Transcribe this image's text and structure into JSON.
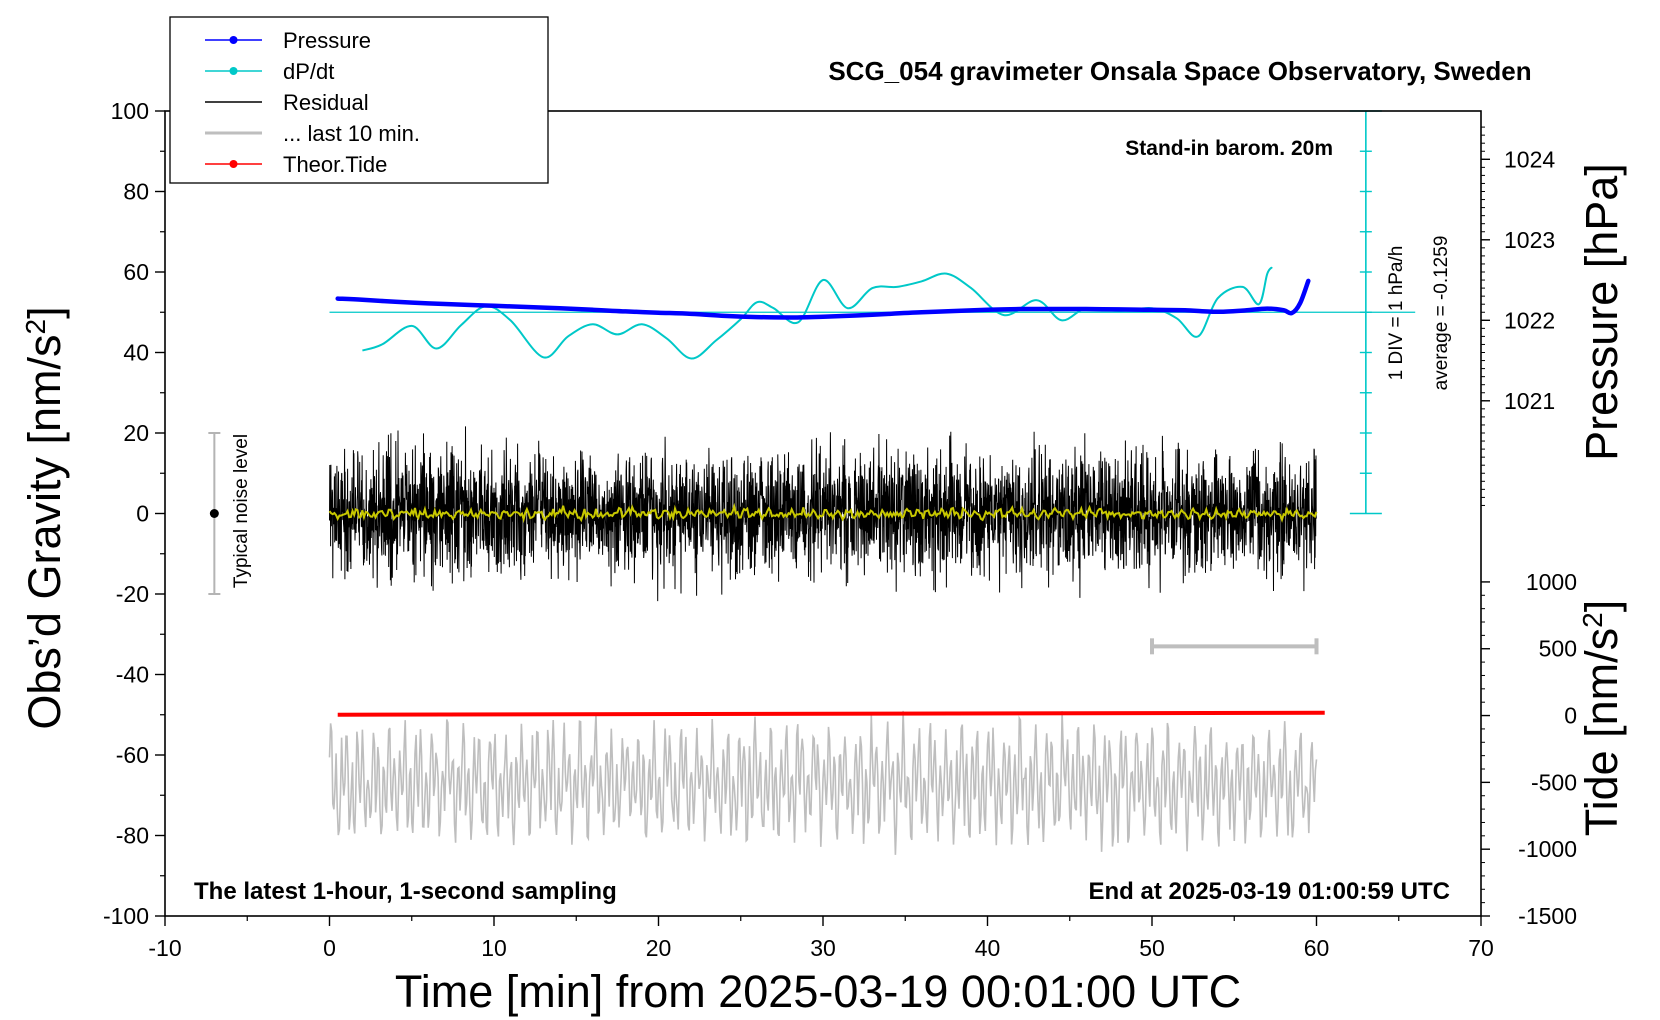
{
  "chart_data": {
    "type": "line",
    "title": "SCG_054 gravimeter Onsala Space Observatory, Sweden",
    "xlabel": "Time [min] from 2025-03-19 00:01:00 UTC",
    "ylabel_left": "Obs’d Gravity [nm/s",
    "ylabel_left_sup": "2",
    "ylabel_left_close": "]",
    "ylabel_right_top": "Pressure [hPa]",
    "ylabel_right_bottom": "Tide [nm/s",
    "ylabel_right_bottom_sup": "2",
    "ylabel_right_bottom_close": "]",
    "xlim": [
      -10,
      70
    ],
    "ylim_left": [
      -100,
      100
    ],
    "xticks": [
      "-10",
      "0",
      "10",
      "20",
      "30",
      "40",
      "50",
      "60",
      "70"
    ],
    "xtick_values": [
      -10,
      0,
      10,
      20,
      30,
      40,
      50,
      60,
      70
    ],
    "yticks_left": [
      "100",
      "80",
      "60",
      "40",
      "20",
      "0",
      "-20",
      "-40",
      "-60",
      "-80",
      "-100"
    ],
    "ytick_values_left": [
      100,
      80,
      60,
      40,
      20,
      0,
      -20,
      -40,
      -60,
      -80,
      -100
    ],
    "pressure_axis": {
      "ticks": [
        "1024",
        "1023",
        "1022",
        "1021"
      ],
      "values": [
        1024,
        1023,
        1022,
        1021
      ],
      "hpa_at_gravity_0": 1019.6,
      "gravity_per_hpa": 20
    },
    "tide_axis": {
      "ticks": [
        "1000",
        "500",
        "0",
        "-500",
        "-1000",
        "-1500"
      ],
      "values": [
        1000,
        500,
        0,
        -500,
        -1000,
        -1500
      ],
      "range": [
        -1500,
        1000
      ],
      "gravity_at_tide_0": -50
    },
    "legend": {
      "location": "top-left",
      "items": [
        {
          "label": "Pressure",
          "color": "#0000ff",
          "marker": true
        },
        {
          "label": "dP/dt",
          "color": "#00c8c8",
          "marker": true
        },
        {
          "label": "Residual",
          "color": "#000000",
          "marker": false
        },
        {
          "label": "... last 10 min.",
          "color": "#bebebe",
          "marker": false
        },
        {
          "label": "Theor.Tide",
          "color": "#ff0000",
          "marker": true
        }
      ]
    },
    "annotations": {
      "stand_in": "Stand-in barom. 20m",
      "dpdt_scale": "1 DIV = 1 hPa/h",
      "dpdt_average": "average = -0.1259",
      "noise_label": "Typical noise level",
      "bottom_left": "The latest 1-hour, 1-second sampling",
      "bottom_right": "End at 2025-03-19 01:00:59 UTC"
    },
    "noise_bar": {
      "x": -7,
      "center": 0,
      "half_range": 20
    },
    "last10_bar": {
      "x_start": 50,
      "x_end": 60,
      "gravity_level": -33
    },
    "dpdt_scale_bar": {
      "x": 63,
      "y_top": 100,
      "y_bottom": 0,
      "y_zero": 50,
      "ticks_every": 10
    },
    "series": [
      {
        "name": "Pressure",
        "color": "#0000ff",
        "x": [
          0.5,
          2,
          4,
          6,
          8,
          10,
          12,
          14,
          16,
          18,
          20,
          22,
          24,
          26,
          28,
          30,
          32,
          34,
          36,
          38,
          40,
          42,
          44,
          46,
          48,
          50,
          52,
          54,
          55.5,
          57,
          58,
          58.5,
          59,
          59.5
        ],
        "y": [
          53.4,
          53.1,
          52.6,
          52.2,
          51.9,
          51.6,
          51.3,
          51,
          50.6,
          50.2,
          49.9,
          49.6,
          49.1,
          48.8,
          48.7,
          48.9,
          49.2,
          49.6,
          50,
          50.3,
          50.6,
          50.8,
          50.8,
          50.8,
          50.7,
          50.6,
          50.5,
          50.1,
          50.4,
          50.9,
          50.5,
          49.8,
          52.2,
          57.8
        ]
      },
      {
        "name": "dP/dt",
        "color": "#00c8c8",
        "x": [
          2,
          3.2,
          5,
          6.5,
          8,
          9.5,
          11,
          13,
          14.5,
          16,
          17.5,
          19,
          20.5,
          22,
          23.5,
          25,
          26,
          27,
          28.5,
          30,
          31.5,
          33,
          34.5,
          36,
          37.5,
          39,
          41,
          43,
          44.5,
          46,
          48,
          50,
          51.5,
          52.8,
          54,
          55.5,
          56.5,
          57,
          57.3
        ],
        "y": [
          40.5,
          42,
          46.6,
          41,
          46.8,
          51.5,
          48,
          38.8,
          44,
          47,
          44.5,
          47,
          43.5,
          38.5,
          43,
          48.3,
          52.5,
          51,
          47.5,
          58,
          51,
          56,
          56.3,
          57.7,
          59.6,
          56,
          49.3,
          53,
          48,
          51,
          50.3,
          51,
          48.5,
          44,
          53.5,
          56.3,
          52,
          59.5,
          61.2
        ]
      },
      {
        "name": "Residual",
        "color": "#000000",
        "x_range": [
          0,
          60
        ],
        "amplitude": 27
      },
      {
        "name": "Residual smoothed",
        "color": "#c8c800",
        "x_range": [
          0,
          60
        ],
        "amplitude": 3
      },
      {
        "name": "... last 10 min.",
        "color": "#bebebe",
        "x_range": [
          0,
          60
        ],
        "center": -67,
        "amplitude": 21
      },
      {
        "name": "Theor.Tide",
        "color": "#ff0000",
        "x": [
          0.5,
          60.5
        ],
        "y": [
          -50,
          -49.5
        ]
      }
    ]
  }
}
